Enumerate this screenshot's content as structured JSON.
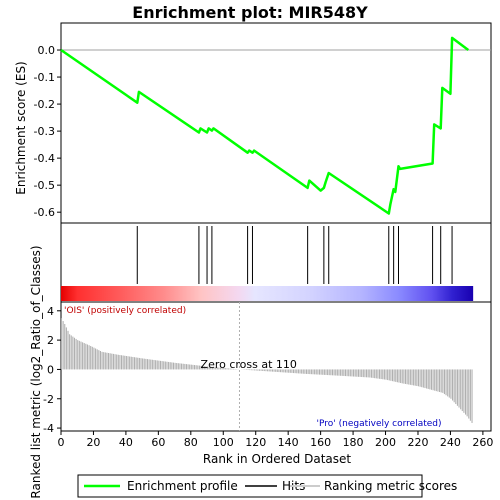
{
  "chart_data": {
    "title": "Enrichment plot: MIR548Y",
    "type": "line",
    "es_panel": {
      "ylabel": "Enrichment score (ES)",
      "ylim": [
        -0.64,
        0.1
      ],
      "yticks": [
        0.0,
        -0.1,
        -0.2,
        -0.3,
        -0.4,
        -0.5,
        -0.6
      ],
      "ytick_labels": [
        "0.0",
        "-0.1",
        "-0.2",
        "-0.3",
        "-0.4",
        "-0.5",
        "-0.6"
      ],
      "series": [
        {
          "name": "Enrichment profile",
          "x": [
            0,
            47,
            48,
            85,
            86,
            90,
            91,
            93,
            94,
            115,
            116,
            118,
            119,
            152,
            153,
            160,
            162,
            163,
            165,
            202,
            203,
            205,
            206,
            208,
            209,
            229,
            230,
            234,
            235,
            240,
            241,
            251
          ],
          "y": [
            0.0,
            -0.195,
            -0.155,
            -0.305,
            -0.29,
            -0.305,
            -0.29,
            -0.298,
            -0.29,
            -0.38,
            -0.372,
            -0.38,
            -0.372,
            -0.51,
            -0.483,
            -0.52,
            -0.51,
            -0.49,
            -0.455,
            -0.605,
            -0.57,
            -0.515,
            -0.525,
            -0.43,
            -0.44,
            -0.42,
            -0.275,
            -0.29,
            -0.14,
            -0.162,
            0.045,
            0.0
          ]
        }
      ]
    },
    "hits": [
      47,
      85,
      90,
      93,
      115,
      118,
      152,
      162,
      165,
      202,
      205,
      208,
      229,
      234,
      241
    ],
    "ranked_panel": {
      "xlabel": "Rank in Ordered Dataset",
      "ylabel": "Ranked list metric (log2_Ratio_of_Classes)",
      "xlim": [
        0,
        265
      ],
      "ylim": [
        -4.2,
        4.6
      ],
      "xticks": [
        0,
        20,
        40,
        60,
        80,
        100,
        120,
        140,
        160,
        180,
        200,
        220,
        240,
        260
      ],
      "xtick_labels": [
        "0",
        "20",
        "40",
        "60",
        "80",
        "100",
        "120",
        "140",
        "160",
        "180",
        "200",
        "220",
        "240",
        "260"
      ],
      "yticks": [
        4,
        2,
        0,
        -2,
        -4
      ],
      "ytick_labels": [
        "4",
        "2",
        "0",
        "-2",
        "-4"
      ],
      "n_genes": 254,
      "metric_anchors": {
        "rank": [
          0,
          2,
          5,
          10,
          18,
          25,
          35,
          50,
          70,
          90,
          110,
          130,
          150,
          170,
          190,
          200,
          210,
          220,
          230,
          235,
          240,
          245,
          250,
          254
        ],
        "value": [
          3.5,
          3.1,
          2.4,
          2.0,
          1.6,
          1.2,
          1.0,
          0.75,
          0.45,
          0.2,
          0.0,
          -0.15,
          -0.3,
          -0.42,
          -0.55,
          -0.7,
          -0.95,
          -1.15,
          -1.45,
          -1.6,
          -2.0,
          -2.6,
          -3.2,
          -3.8
        ]
      },
      "zero_cross_label": "Zero cross at 110",
      "zero_cross_rank": 110,
      "positive_label": "'OIS' (positively correlated)",
      "negative_label": "'Pro' (negatively correlated)"
    },
    "colors": {
      "profile": "#00ff00",
      "hit": "#000000",
      "metric_bar": "#b0b0b0",
      "positive_label": "#c00000",
      "negative_label": "#0000c0",
      "zero_line": "#b0b0b0"
    },
    "legend": {
      "placement": "bottom",
      "entries": [
        "Enrichment profile",
        "Hits",
        "Ranking metric scores"
      ]
    }
  }
}
